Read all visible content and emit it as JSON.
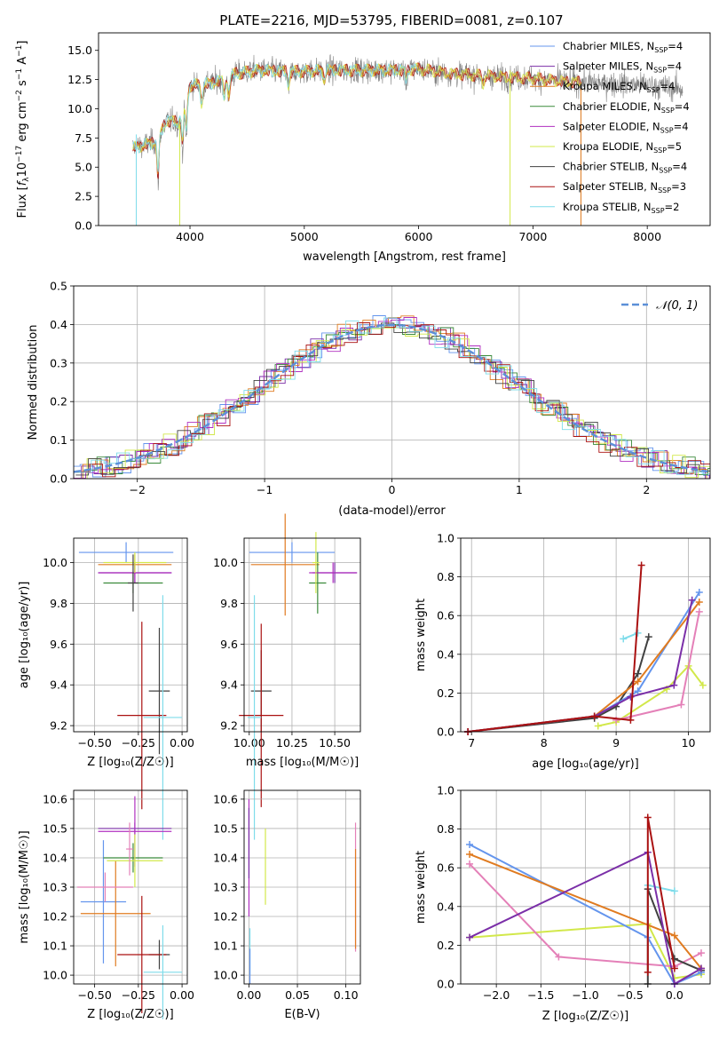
{
  "figure": {
    "title": "PLATE=2216, MJD=53795, FIBERID=0081, z=0.107"
  },
  "colors": {
    "Chabrier MILES": "#6495ed",
    "Salpeter MILES": "#7b2fa8",
    "Kroupa MILES": "#e07b20",
    "Chabrier ELODIE": "#3a8a3a",
    "Salpeter ELODIE": "#b030c0",
    "Kroupa ELODIE": "#d2e84a",
    "Chabrier STELIB": "#404040",
    "Salpeter STELIB": "#aa1111",
    "Kroupa STELIB": "#7fdcea",
    "Pink": "#e480b8",
    "Normal": "#5b8fd8",
    "Grid": "#b0b0b0"
  },
  "chart_data": [
    {
      "id": "spectrum",
      "type": "line",
      "title": "PLATE=2216, MJD=53795, FIBERID=0081, z=0.107",
      "xlabel": "wavelength [Angstrom, rest frame]",
      "ylabel": "Flux [f_λ10^{-17} erg cm^{-2} s^{-1} A^{-1}]",
      "xlim": [
        3200,
        8550
      ],
      "ylim": [
        0,
        16.5
      ],
      "xticks": [
        4000,
        5000,
        6000,
        7000,
        8000
      ],
      "yticks": [
        0.0,
        2.5,
        5.0,
        7.5,
        10.0,
        12.5,
        15.0
      ],
      "grid": false,
      "legend_position": "right",
      "legend": [
        {
          "label": "Chabrier MILES, N",
          "sub": "SSP",
          "tail": "=4",
          "color": "Chabrier MILES"
        },
        {
          "label": "Salpeter MILES, N",
          "sub": "SSP",
          "tail": "=4",
          "color": "Salpeter MILES"
        },
        {
          "label": "Kroupa MILES, N",
          "sub": "SSP",
          "tail": "=4",
          "color": "Kroupa MILES"
        },
        {
          "label": "Chabrier ELODIE, N",
          "sub": "SSP",
          "tail": "=4",
          "color": "Chabrier ELODIE"
        },
        {
          "label": "Salpeter ELODIE, N",
          "sub": "SSP",
          "tail": "=4",
          "color": "Salpeter ELODIE"
        },
        {
          "label": "Kroupa ELODIE, N",
          "sub": "SSP",
          "tail": "=5",
          "color": "Kroupa ELODIE"
        },
        {
          "label": "Chabrier STELIB, N",
          "sub": "SSP",
          "tail": "=4",
          "color": "Chabrier STELIB"
        },
        {
          "label": "Salpeter STELIB, N",
          "sub": "SSP",
          "tail": "=3",
          "color": "Salpeter STELIB"
        },
        {
          "label": "Kroupa STELIB, N",
          "sub": "SSP",
          "tail": "=2",
          "color": "Kroupa STELIB"
        }
      ],
      "continuum": [
        [
          3500,
          6.6
        ],
        [
          3700,
          7.2
        ],
        [
          3800,
          9.0
        ],
        [
          3900,
          8.8
        ],
        [
          4000,
          12.0
        ],
        [
          4200,
          12.2
        ],
        [
          4400,
          13.0
        ],
        [
          4600,
          13.3
        ],
        [
          4800,
          13.2
        ],
        [
          5000,
          13.2
        ],
        [
          5200,
          13.3
        ],
        [
          5500,
          13.3
        ],
        [
          5800,
          13.3
        ],
        [
          6000,
          13.4
        ],
        [
          6300,
          13.0
        ],
        [
          6600,
          12.8
        ],
        [
          7000,
          12.6
        ],
        [
          7300,
          12.3
        ],
        [
          7600,
          12.2
        ],
        [
          8000,
          12.0
        ],
        [
          8300,
          11.7
        ]
      ],
      "data_range": [
        3500,
        8310
      ],
      "model_range": [
        3500,
        7420
      ],
      "dips": [
        [
          3720,
          4.0
        ],
        [
          3935,
          3.5
        ],
        [
          3968,
          3.5
        ],
        [
          4102,
          2.0
        ],
        [
          4300,
          2.0
        ],
        [
          4340,
          2.0
        ],
        [
          4861,
          1.5
        ],
        [
          5175,
          1.0
        ],
        [
          5890,
          1.0
        ],
        [
          6563,
          0.8
        ]
      ],
      "line_drops": [
        {
          "x": 3530,
          "top": 7.8,
          "color": "Kroupa STELIB"
        },
        {
          "x": 3910,
          "top": 8.6,
          "color": "Kroupa ELODIE"
        },
        {
          "x": 6800,
          "top": 13.3,
          "color": "Kroupa ELODIE"
        },
        {
          "x": 7420,
          "top": 12.3,
          "color": "Kroupa MILES"
        }
      ]
    },
    {
      "id": "residuals",
      "type": "histogram",
      "xlabel": "(data-model)/error",
      "ylabel": "Normed distribution",
      "xlim": [
        -2.5,
        2.5
      ],
      "ylim": [
        0,
        0.5
      ],
      "xticks": [
        -2,
        -1,
        0,
        1,
        2
      ],
      "yticks": [
        0.0,
        0.1,
        0.2,
        0.3,
        0.4,
        0.5
      ],
      "grid": true,
      "bin_width": 0.1,
      "legend_label": "𝒩(0, 1)",
      "legend_position": "top-right",
      "normal": {
        "mean": 0,
        "sigma": 1,
        "color": "Normal"
      }
    },
    {
      "id": "age_vs_Z",
      "type": "errorbar",
      "xlabel": "Z [log₁₀(Z/Z☉)]",
      "ylabel": "age  [log₁₀(age/yr)]",
      "xlim": [
        -0.62,
        0.03
      ],
      "ylim": [
        9.17,
        10.12
      ],
      "xticks": [
        -0.5,
        -0.25,
        0.0
      ],
      "yticks": [
        9.2,
        9.4,
        9.6,
        9.8,
        10.0
      ],
      "grid": true,
      "points": [
        {
          "x": -0.32,
          "y": 10.05,
          "xerr": 0.27,
          "yerr": 0.05,
          "color": "Chabrier MILES"
        },
        {
          "x": -0.27,
          "y": 9.95,
          "xerr": 0.21,
          "yerr": 0.05,
          "color": "Salpeter MILES"
        },
        {
          "x": -0.27,
          "y": 9.99,
          "xerr": 0.21,
          "yerr": 0.05,
          "color": "Kroupa MILES"
        },
        {
          "x": -0.28,
          "y": 9.9,
          "xerr": 0.17,
          "yerr": 0.05,
          "color": "Chabrier ELODIE"
        },
        {
          "x": -0.27,
          "y": 9.95,
          "xerr": 0.21,
          "yerr": 0.05,
          "color": "Salpeter ELODIE"
        },
        {
          "x": -0.27,
          "y": 10.0,
          "xerr": 0.18,
          "yerr": 0.05,
          "color": "Kroupa ELODIE"
        },
        {
          "x": -0.28,
          "y": 9.9,
          "xerr": 0.03,
          "yerr": 0.14,
          "color": "Chabrier STELIB"
        },
        {
          "x": -0.13,
          "y": 9.37,
          "xerr": 0.06,
          "yerr": 0.31,
          "color": "Chabrier STELIB"
        },
        {
          "x": -0.23,
          "y": 9.25,
          "xerr": 0.14,
          "yerr": 0.46,
          "color": "Salpeter STELIB"
        },
        {
          "x": -0.11,
          "y": 9.24,
          "xerr": 0.11,
          "yerr": 0.6,
          "color": "Kroupa STELIB"
        }
      ]
    },
    {
      "id": "age_vs_mass",
      "type": "errorbar",
      "xlabel": "mass [log₁₀(M/M☉)]",
      "ylabel": "",
      "xlim": [
        9.97,
        10.65
      ],
      "ylim": [
        9.17,
        10.12
      ],
      "xticks": [
        10.0,
        10.25,
        10.5
      ],
      "yticks": [
        9.2,
        9.4,
        9.6,
        9.8,
        10.0
      ],
      "grid": true,
      "points": [
        {
          "x": 10.25,
          "y": 10.05,
          "xerr": 0.25,
          "yerr": 0.05,
          "color": "Chabrier MILES"
        },
        {
          "x": 10.5,
          "y": 9.95,
          "xerr": 0.13,
          "yerr": 0.05,
          "color": "Salpeter MILES"
        },
        {
          "x": 10.21,
          "y": 9.99,
          "xerr": 0.2,
          "yerr": 0.25,
          "color": "Kroupa MILES"
        },
        {
          "x": 10.4,
          "y": 9.9,
          "xerr": 0.05,
          "yerr": 0.15,
          "color": "Chabrier ELODIE"
        },
        {
          "x": 10.49,
          "y": 9.95,
          "xerr": 0.14,
          "yerr": 0.05,
          "color": "Salpeter ELODIE"
        },
        {
          "x": 10.39,
          "y": 10.0,
          "xerr": 0.02,
          "yerr": 0.15,
          "color": "Kroupa ELODIE"
        },
        {
          "x": 10.07,
          "y": 9.37,
          "xerr": 0.06,
          "yerr": 0.2,
          "color": "Chabrier STELIB"
        },
        {
          "x": 10.07,
          "y": 9.25,
          "xerr": 0.13,
          "yerr": 0.45,
          "color": "Salpeter STELIB"
        },
        {
          "x": 10.03,
          "y": 9.24,
          "xerr": 0.04,
          "yerr": 0.6,
          "color": "Kroupa STELIB"
        }
      ]
    },
    {
      "id": "massweight_vs_age",
      "type": "line",
      "xlabel": "age  [log₁₀(age/yr)]",
      "ylabel": "mass weight",
      "xlim": [
        6.85,
        10.3
      ],
      "ylim": [
        0,
        1.0
      ],
      "xticks": [
        7,
        8,
        9,
        10
      ],
      "yticks": [
        0.0,
        0.2,
        0.4,
        0.6,
        0.8,
        1.0
      ],
      "grid": true,
      "series": [
        {
          "color": "Kroupa ELODIE",
          "x": [
            8.75,
            9.0,
            9.7,
            10.0,
            10.2
          ],
          "y": [
            0.03,
            0.05,
            0.22,
            0.34,
            0.24
          ]
        },
        {
          "color": "Pink",
          "x": [
            9.0,
            9.9,
            10.15
          ],
          "y": [
            0.06,
            0.14,
            0.62
          ]
        },
        {
          "color": "Kroupa STELIB",
          "x": [
            9.1,
            9.3
          ],
          "y": [
            0.48,
            0.51
          ]
        },
        {
          "color": "Chabrier STELIB",
          "x": [
            6.95,
            8.7,
            9.0,
            9.3,
            9.45
          ],
          "y": [
            0.0,
            0.07,
            0.13,
            0.3,
            0.49
          ]
        },
        {
          "color": "Chabrier MILES",
          "x": [
            6.95,
            8.7,
            9.3,
            10.15
          ],
          "y": [
            0.0,
            0.08,
            0.21,
            0.72
          ]
        },
        {
          "color": "Kroupa MILES",
          "x": [
            6.95,
            8.7,
            9.3,
            10.15
          ],
          "y": [
            0.0,
            0.08,
            0.26,
            0.67
          ]
        },
        {
          "color": "Salpeter MILES",
          "x": [
            6.95,
            8.7,
            9.2,
            9.8,
            10.05
          ],
          "y": [
            0.0,
            0.08,
            0.18,
            0.24,
            0.68
          ]
        },
        {
          "color": "Salpeter STELIB",
          "x": [
            6.95,
            8.7,
            9.2,
            9.35
          ],
          "y": [
            0.0,
            0.08,
            0.06,
            0.86
          ]
        }
      ]
    },
    {
      "id": "mass_vs_Z",
      "type": "errorbar",
      "xlabel": "Z [log₁₀(Z/Z☉)]",
      "ylabel": "mass [log₁₀(M/M☉)]",
      "xlim": [
        -0.62,
        0.03
      ],
      "ylim": [
        9.97,
        10.63
      ],
      "xticks": [
        -0.5,
        -0.25,
        0.0
      ],
      "yticks": [
        10.0,
        10.1,
        10.2,
        10.3,
        10.4,
        10.5,
        10.6
      ],
      "grid": true,
      "points": [
        {
          "x": -0.45,
          "y": 10.25,
          "xerr": 0.13,
          "yerr": 0.21,
          "color": "Chabrier MILES"
        },
        {
          "x": -0.27,
          "y": 10.5,
          "xerr": 0.21,
          "yerr": 0.02,
          "color": "Salpeter MILES"
        },
        {
          "x": -0.38,
          "y": 10.21,
          "xerr": 0.2,
          "yerr": 0.18,
          "color": "Kroupa MILES"
        },
        {
          "x": -0.28,
          "y": 10.4,
          "xerr": 0.17,
          "yerr": 0.05,
          "color": "Chabrier ELODIE"
        },
        {
          "x": -0.27,
          "y": 10.49,
          "xerr": 0.21,
          "yerr": 0.12,
          "color": "Salpeter ELODIE"
        },
        {
          "x": -0.27,
          "y": 10.39,
          "xerr": 0.16,
          "yerr": 0.09,
          "color": "Kroupa ELODIE"
        },
        {
          "x": -0.13,
          "y": 10.07,
          "xerr": 0.06,
          "yerr": 0.05,
          "color": "Chabrier STELIB"
        },
        {
          "x": -0.23,
          "y": 10.07,
          "xerr": 0.14,
          "yerr": 0.2,
          "color": "Salpeter STELIB"
        },
        {
          "x": -0.11,
          "y": 10.01,
          "xerr": 0.11,
          "yerr": 0.16,
          "color": "Kroupa STELIB"
        },
        {
          "x": -0.44,
          "y": 10.3,
          "xerr": 0.16,
          "yerr": 0.05,
          "color": "Pink"
        },
        {
          "x": -0.3,
          "y": 10.43,
          "xerr": 0.02,
          "yerr": 0.09,
          "color": "Pink"
        }
      ]
    },
    {
      "id": "mass_vs_EBV",
      "type": "errorbar",
      "xlabel": "E(B-V)",
      "ylabel": "",
      "xlim": [
        -0.005,
        0.115
      ],
      "ylim": [
        9.97,
        10.63
      ],
      "xticks": [
        0.0,
        0.05,
        0.1
      ],
      "yticks": [
        10.0,
        10.1,
        10.2,
        10.3,
        10.4,
        10.5,
        10.6
      ],
      "grid": true,
      "points": [
        {
          "x": 0.0,
          "y": 10.4,
          "xerr": 0,
          "yerr": 0.2,
          "color": "Salpeter ELODIE"
        },
        {
          "x": 0.0,
          "y": 10.45,
          "xerr": 0,
          "yerr": 0.12,
          "color": "Salpeter MILES"
        },
        {
          "x": 0.001,
          "y": 10.08,
          "xerr": 0,
          "yerr": 0.08,
          "color": "Kroupa STELIB"
        },
        {
          "x": 0.001,
          "y": 10.03,
          "xerr": 0,
          "yerr": 0.06,
          "color": "Chabrier MILES"
        },
        {
          "x": 0.017,
          "y": 10.37,
          "xerr": 0,
          "yerr": 0.13,
          "color": "Kroupa ELODIE"
        },
        {
          "x": 0.11,
          "y": 10.3,
          "xerr": 0,
          "yerr": 0.22,
          "color": "Pink"
        },
        {
          "x": 0.11,
          "y": 10.26,
          "xerr": 0,
          "yerr": 0.17,
          "color": "Kroupa MILES"
        }
      ]
    },
    {
      "id": "massweight_vs_Z",
      "type": "line",
      "xlabel": "Z [log₁₀(Z/Z☉)]",
      "ylabel": "mass weight",
      "xlim": [
        -2.4,
        0.4
      ],
      "ylim": [
        0,
        1.0
      ],
      "xticks": [
        -2.0,
        -1.5,
        -1.0,
        -0.5,
        0.0
      ],
      "yticks": [
        0.0,
        0.2,
        0.4,
        0.6,
        0.8,
        1.0
      ],
      "grid": true,
      "series": [
        {
          "color": "Kroupa ELODIE",
          "x": [
            -2.3,
            -0.3,
            0.0,
            0.3
          ],
          "y": [
            0.24,
            0.31,
            0.03,
            0.05
          ]
        },
        {
          "color": "Pink",
          "x": [
            -2.3,
            -1.3,
            0.0,
            0.3
          ],
          "y": [
            0.62,
            0.14,
            0.09,
            0.16
          ]
        },
        {
          "color": "Kroupa STELIB",
          "x": [
            -0.3,
            0.0
          ],
          "y": [
            0.51,
            0.48
          ]
        },
        {
          "color": "Chabrier STELIB",
          "x": [
            -0.3,
            -0.3,
            0.0,
            0.3
          ],
          "y": [
            0.0,
            0.49,
            0.13,
            0.07
          ]
        },
        {
          "color": "Chabrier MILES",
          "x": [
            -2.3,
            -0.3,
            0.0,
            0.3
          ],
          "y": [
            0.72,
            0.24,
            0.0,
            0.06
          ]
        },
        {
          "color": "Kroupa MILES",
          "x": [
            -2.3,
            0.0,
            0.3
          ],
          "y": [
            0.67,
            0.25,
            0.08
          ]
        },
        {
          "color": "Salpeter MILES",
          "x": [
            -2.3,
            -0.3,
            0.0,
            0.3
          ],
          "y": [
            0.24,
            0.68,
            0.0,
            0.08
          ]
        },
        {
          "color": "Salpeter STELIB",
          "x": [
            -0.3,
            -0.3,
            0.0
          ],
          "y": [
            0.06,
            0.86,
            0.08
          ]
        }
      ]
    }
  ]
}
